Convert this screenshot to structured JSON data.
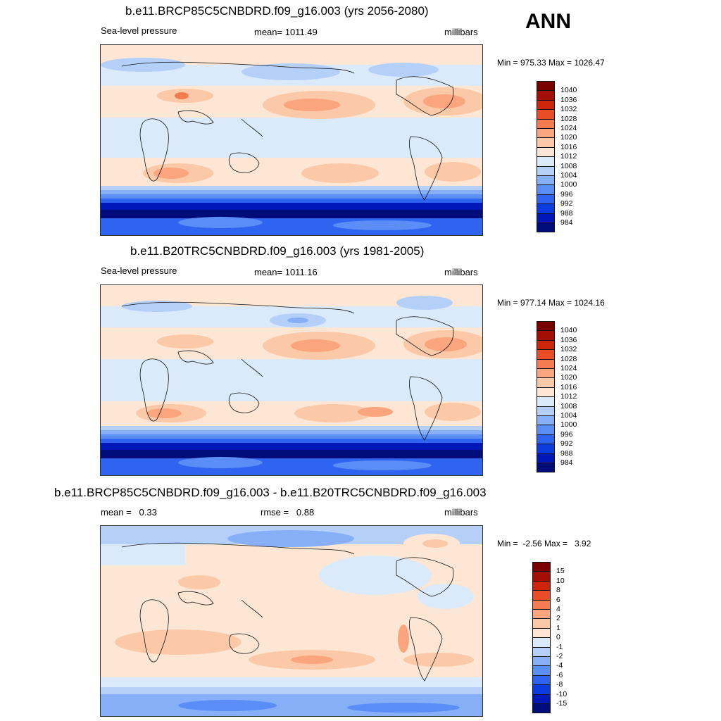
{
  "season": "ANN",
  "palettes": {
    "abs": [
      "#000c7a",
      "#0018b8",
      "#0a3ce0",
      "#2f64f0",
      "#5a8df5",
      "#86aff8",
      "#b4cff8",
      "#daeafa",
      "#fde7d4",
      "#fcc9a8",
      "#fba57e",
      "#f57b50",
      "#ea4c25",
      "#cc2509",
      "#a40f04",
      "#7a0000"
    ],
    "diff": [
      "#000c7a",
      "#0018b8",
      "#0a3ce0",
      "#2f64f0",
      "#5a8df5",
      "#86aff8",
      "#b4cff8",
      "#daeafa",
      "#fde7d4",
      "#fcc9a8",
      "#fba57e",
      "#f57b50",
      "#ea4c25",
      "#cc2509",
      "#a40f04",
      "#7a0000"
    ]
  },
  "panels": [
    {
      "title": "b.e11.BRCP85C5CNBDRD.f09_g16.003 (yrs 2056-2080)",
      "left_text": "Sea-level pressure",
      "center_text": "mean= 1011.49",
      "right_text": "millibars",
      "minmax": "Min = 975.33 Max = 1026.47",
      "kind": "abs",
      "levels": [
        "1040",
        "1036",
        "1032",
        "1028",
        "1024",
        "1020",
        "1016",
        "1012",
        "1008",
        "1004",
        "1000",
        "996",
        "992",
        "988",
        "984"
      ]
    },
    {
      "title": "b.e11.B20TRC5CNBDRD.f09_g16.003 (yrs 1981-2005)",
      "left_text": "Sea-level pressure",
      "center_text": "mean= 1011.16",
      "right_text": "millibars",
      "minmax": "Min = 977.14 Max = 1024.16",
      "kind": "abs",
      "levels": [
        "1040",
        "1036",
        "1032",
        "1028",
        "1024",
        "1020",
        "1016",
        "1012",
        "1008",
        "1004",
        "1000",
        "996",
        "992",
        "988",
        "984"
      ]
    },
    {
      "title": "b.e11.BRCP85C5CNBDRD.f09_g16.003 - b.e11.B20TRC5CNBDRD.f09_g16.003",
      "left_text": "mean =   0.33",
      "center_text": "rmse =   0.88",
      "right_text": "millibars",
      "minmax": "Min =  -2.56 Max =   3.92",
      "kind": "diff",
      "levels": [
        "15",
        "10",
        "8",
        "6",
        "4",
        "2",
        "1",
        "0",
        "-1",
        "-2",
        "-4",
        "-6",
        "-8",
        "-10",
        "-15"
      ]
    }
  ]
}
